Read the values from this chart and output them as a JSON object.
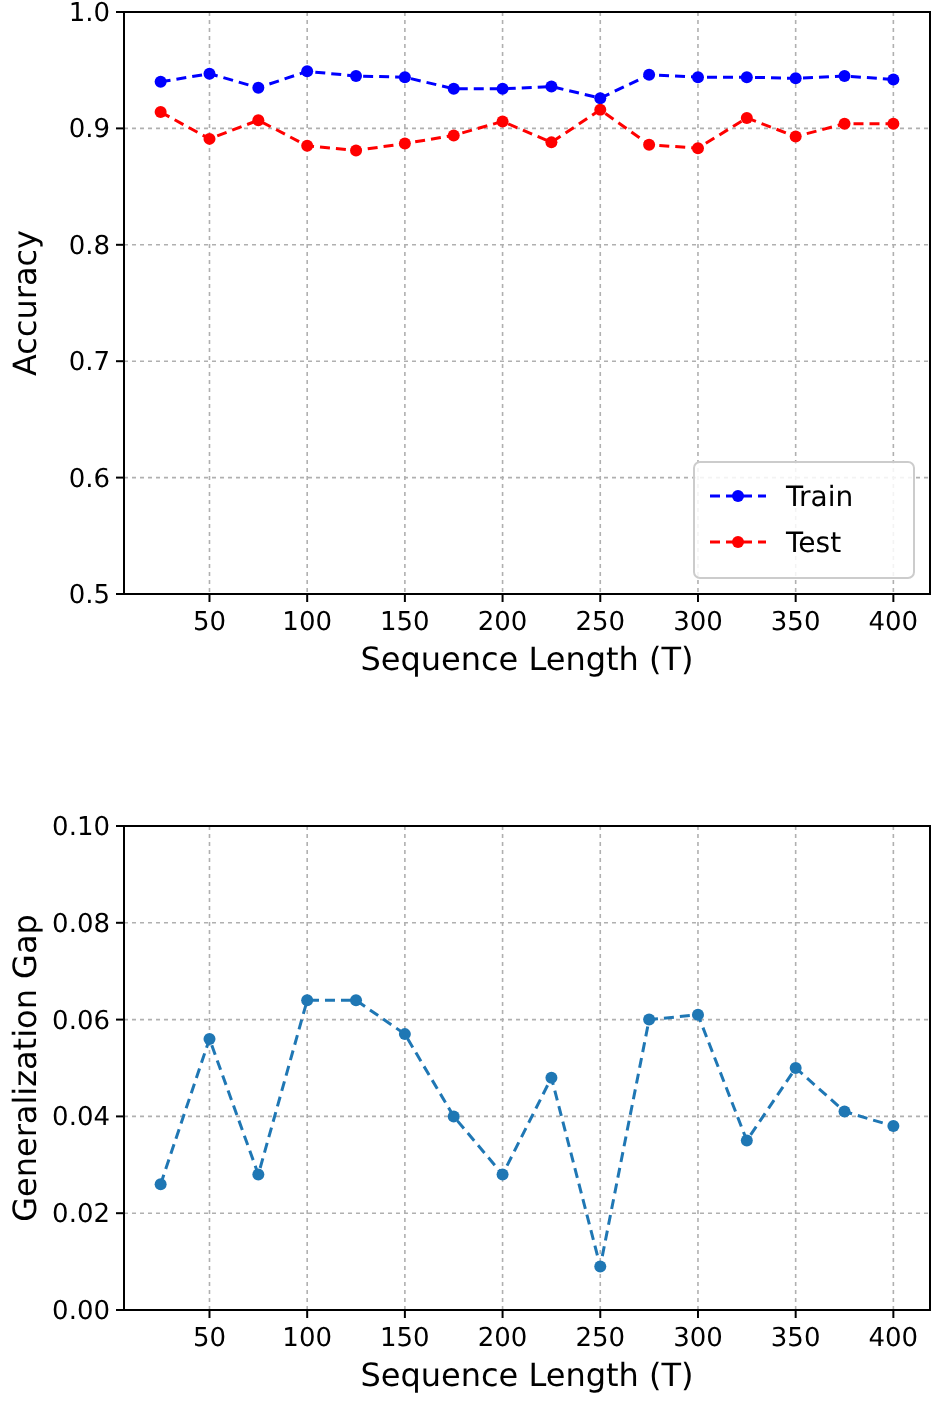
{
  "chart_data": [
    {
      "type": "line",
      "xlabel": "Sequence Length (T)",
      "ylabel": "Accuracy",
      "x": [
        25,
        50,
        75,
        100,
        125,
        150,
        175,
        200,
        225,
        250,
        275,
        300,
        325,
        350,
        375,
        400
      ],
      "series": [
        {
          "name": "Train",
          "color": "#0000ff",
          "values": [
            0.94,
            0.947,
            0.935,
            0.949,
            0.945,
            0.944,
            0.934,
            0.934,
            0.936,
            0.926,
            0.946,
            0.944,
            0.944,
            0.943,
            0.945,
            0.942
          ]
        },
        {
          "name": "Test",
          "color": "#ff0000",
          "values": [
            0.914,
            0.891,
            0.907,
            0.885,
            0.881,
            0.887,
            0.894,
            0.906,
            0.888,
            0.916,
            0.886,
            0.883,
            0.909,
            0.893,
            0.904,
            0.904
          ]
        }
      ],
      "xlim": [
        6.25,
        418.75
      ],
      "xticks": [
        50,
        100,
        150,
        200,
        250,
        300,
        350,
        400
      ],
      "ylim": [
        0.5,
        1.0
      ],
      "yticks": [
        {
          "value": 0.5,
          "label": "0.5"
        },
        {
          "value": 0.6,
          "label": "0.6"
        },
        {
          "value": 0.7,
          "label": "0.7"
        },
        {
          "value": 0.8,
          "label": "0.8"
        },
        {
          "value": 0.9,
          "label": "0.9"
        },
        {
          "value": 1.0,
          "label": "1.0"
        }
      ],
      "grid": true,
      "legend": "bottom right",
      "marker": "circle",
      "line_style": "dashed"
    },
    {
      "type": "line",
      "xlabel": "Sequence Length (T)",
      "ylabel": "Generalization Gap",
      "x": [
        25,
        50,
        75,
        100,
        125,
        150,
        175,
        200,
        225,
        250,
        275,
        300,
        325,
        350,
        375,
        400
      ],
      "series": [
        {
          "color": "#1f77b4",
          "values": [
            0.026,
            0.056,
            0.028,
            0.064,
            0.064,
            0.057,
            0.04,
            0.028,
            0.048,
            0.009,
            0.06,
            0.061,
            0.035,
            0.05,
            0.041,
            0.038
          ]
        }
      ],
      "xlim": [
        6.25,
        418.75
      ],
      "xticks": [
        50,
        100,
        150,
        200,
        250,
        300,
        350,
        400
      ],
      "ylim": [
        0,
        0.1
      ],
      "yticks": [
        {
          "value": 0,
          "label": "0.00"
        },
        {
          "value": 0.02,
          "label": "0.02"
        },
        {
          "value": 0.04,
          "label": "0.04"
        },
        {
          "value": 0.06,
          "label": "0.06"
        },
        {
          "value": 0.08,
          "label": "0.08"
        },
        {
          "value": 0.1,
          "label": "0.10"
        }
      ],
      "grid": true,
      "legend": false,
      "marker": "circle",
      "line_style": "dashed"
    }
  ]
}
